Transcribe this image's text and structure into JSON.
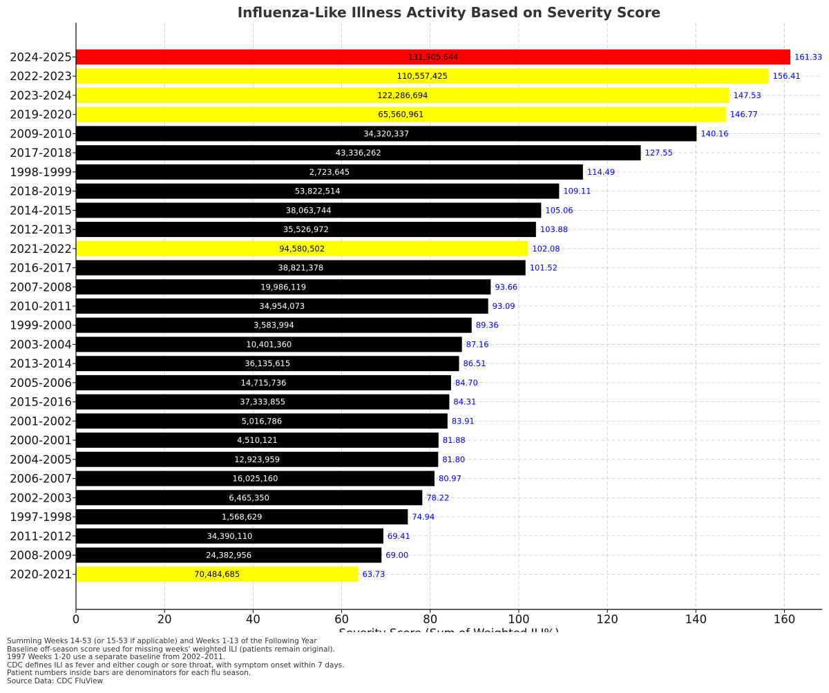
{
  "chart_data": {
    "type": "bar",
    "orientation": "horizontal",
    "title": "Influenza-Like Illness Activity Based on Severity Score",
    "xlabel": "Severity Score (Sum of Weighted ILI%)",
    "ylabel": "",
    "xlim": [
      0,
      168.5
    ],
    "xticks": [
      "0",
      "20",
      "40",
      "60",
      "80",
      "100",
      "120",
      "140",
      "160"
    ],
    "grid": true,
    "colors": {
      "current": "#ff0000",
      "post_covid": "#ffff00",
      "default": "#000000",
      "score_label": "#0000ee"
    },
    "bars": [
      {
        "season": "2024-2025",
        "score": 161.33,
        "score_label": "161.33",
        "patients": "131,905,644",
        "color": "#ff0000"
      },
      {
        "season": "2022-2023",
        "score": 156.41,
        "score_label": "156.41",
        "patients": "110,557,425",
        "color": "#ffff00"
      },
      {
        "season": "2023-2024",
        "score": 147.53,
        "score_label": "147.53",
        "patients": "122,286,694",
        "color": "#ffff00"
      },
      {
        "season": "2019-2020",
        "score": 146.77,
        "score_label": "146.77",
        "patients": "65,560,961",
        "color": "#ffff00"
      },
      {
        "season": "2009-2010",
        "score": 140.16,
        "score_label": "140.16",
        "patients": "34,320,337",
        "color": "#000000"
      },
      {
        "season": "2017-2018",
        "score": 127.55,
        "score_label": "127.55",
        "patients": "43,336,262",
        "color": "#000000"
      },
      {
        "season": "1998-1999",
        "score": 114.49,
        "score_label": "114.49",
        "patients": "2,723,645",
        "color": "#000000"
      },
      {
        "season": "2018-2019",
        "score": 109.11,
        "score_label": "109.11",
        "patients": "53,822,514",
        "color": "#000000"
      },
      {
        "season": "2014-2015",
        "score": 105.06,
        "score_label": "105.06",
        "patients": "38,063,744",
        "color": "#000000"
      },
      {
        "season": "2012-2013",
        "score": 103.88,
        "score_label": "103.88",
        "patients": "35,526,972",
        "color": "#000000"
      },
      {
        "season": "2021-2022",
        "score": 102.08,
        "score_label": "102.08",
        "patients": "94,580,502",
        "color": "#ffff00"
      },
      {
        "season": "2016-2017",
        "score": 101.52,
        "score_label": "101.52",
        "patients": "38,821,378",
        "color": "#000000"
      },
      {
        "season": "2007-2008",
        "score": 93.66,
        "score_label": "93.66",
        "patients": "19,986,119",
        "color": "#000000"
      },
      {
        "season": "2010-2011",
        "score": 93.09,
        "score_label": "93.09",
        "patients": "34,954,073",
        "color": "#000000"
      },
      {
        "season": "1999-2000",
        "score": 89.36,
        "score_label": "89.36",
        "patients": "3,583,994",
        "color": "#000000"
      },
      {
        "season": "2003-2004",
        "score": 87.16,
        "score_label": "87.16",
        "patients": "10,401,360",
        "color": "#000000"
      },
      {
        "season": "2013-2014",
        "score": 86.51,
        "score_label": "86.51",
        "patients": "36,135,615",
        "color": "#000000"
      },
      {
        "season": "2005-2006",
        "score": 84.7,
        "score_label": "84.70",
        "patients": "14,715,736",
        "color": "#000000"
      },
      {
        "season": "2015-2016",
        "score": 84.31,
        "score_label": "84.31",
        "patients": "37,333,855",
        "color": "#000000"
      },
      {
        "season": "2001-2002",
        "score": 83.91,
        "score_label": "83.91",
        "patients": "5,016,786",
        "color": "#000000"
      },
      {
        "season": "2000-2001",
        "score": 81.88,
        "score_label": "81.88",
        "patients": "4,510,121",
        "color": "#000000"
      },
      {
        "season": "2004-2005",
        "score": 81.8,
        "score_label": "81.80",
        "patients": "12,923,959",
        "color": "#000000"
      },
      {
        "season": "2006-2007",
        "score": 80.97,
        "score_label": "80.97",
        "patients": "16,025,160",
        "color": "#000000"
      },
      {
        "season": "2002-2003",
        "score": 78.22,
        "score_label": "78.22",
        "patients": "6,465,350",
        "color": "#000000"
      },
      {
        "season": "1997-1998",
        "score": 74.94,
        "score_label": "74.94",
        "patients": "1,568,629",
        "color": "#000000"
      },
      {
        "season": "2011-2012",
        "score": 69.41,
        "score_label": "69.41",
        "patients": "34,390,110",
        "color": "#000000"
      },
      {
        "season": "2008-2009",
        "score": 69.0,
        "score_label": "69.00",
        "patients": "24,382,956",
        "color": "#000000"
      },
      {
        "season": "2020-2021",
        "score": 63.73,
        "score_label": "63.73",
        "patients": "70,484,685",
        "color": "#ffff00"
      }
    ]
  },
  "footnotes": [
    "Summing Weeks 14-53 (or 15-53 if applicable) and Weeks 1-13 of the Following Year",
    "Baseline off-season score used for missing weeks' weighted ILI (patients remain original).",
    "1997 Weeks 1-20 use a separate baseline from 2002–2011.",
    "CDC defines ILI as fever and either cough or sore throat, with symptom onset within 7 days.",
    "Patient numbers inside bars are denominators for each flu season.",
    "Source Data: CDC FluView"
  ]
}
